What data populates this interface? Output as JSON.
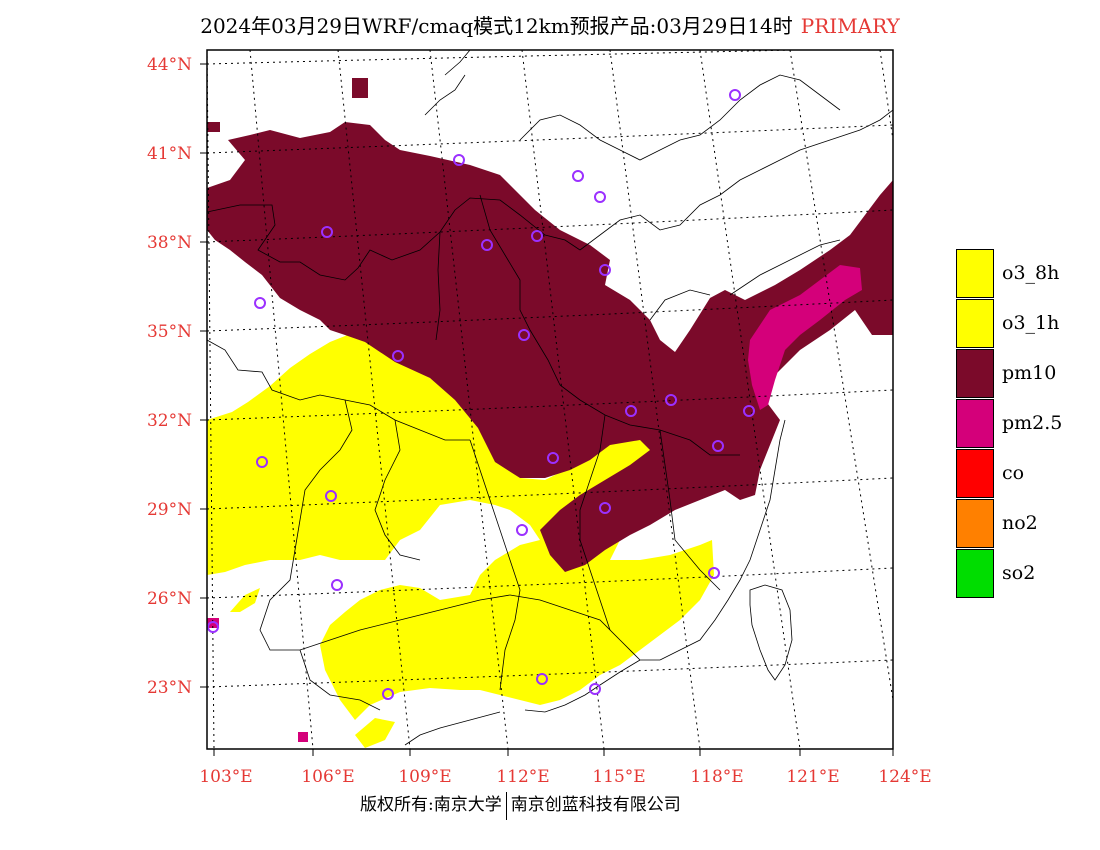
{
  "title": {
    "main": "2024年03月29日WRF/cmaq模式12km预报产品:03月29日14时",
    "tag": "PRIMARY"
  },
  "map": {
    "lat_labels": [
      "44°N",
      "41°N",
      "38°N",
      "35°N",
      "32°N",
      "29°N",
      "26°N",
      "23°N"
    ],
    "lon_labels": [
      "103°E",
      "106°E",
      "109°E",
      "112°E",
      "115°E",
      "118°E",
      "121°E",
      "124°E"
    ],
    "region_colors": {
      "pm10": "#7b0a2a",
      "pm25": "#d4007a",
      "o3": "#ffff00",
      "station_marker": "#9b30ff",
      "border": "#000000"
    }
  },
  "legend": {
    "items": [
      {
        "label": "o3_8h",
        "color": "#ffff00"
      },
      {
        "label": "o3_1h",
        "color": "#ffff00"
      },
      {
        "label": "pm10",
        "color": "#7b0a2a"
      },
      {
        "label": "pm2.5",
        "color": "#d4007a"
      },
      {
        "label": "co",
        "color": "#ff0000"
      },
      {
        "label": "no2",
        "color": "#ff8000"
      },
      {
        "label": "so2",
        "color": "#00dd00"
      }
    ]
  },
  "footer": {
    "left": "版权所有:南京大学",
    "right": "南京创蓝科技有限公司"
  }
}
